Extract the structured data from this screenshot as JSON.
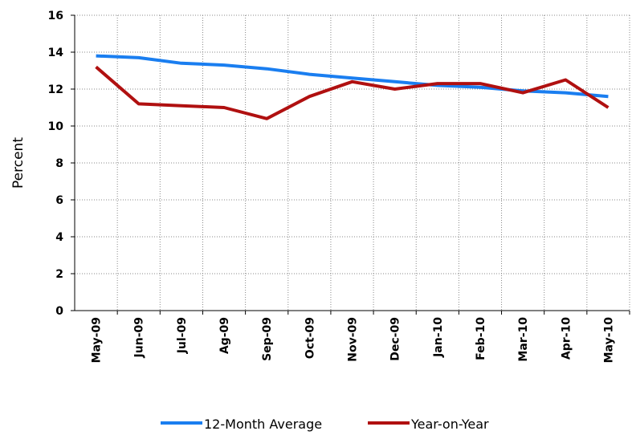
{
  "chart_data": {
    "type": "line",
    "y_label": "Percent",
    "categories": [
      "May-09",
      "Jun-09",
      "Jul-09",
      "Ag-09",
      "Sep-09",
      "Oct-09",
      "Nov-09",
      "Dec-09",
      "Jan-10",
      "Feb-10",
      "Mar-10",
      "Apr-10",
      "May-10"
    ],
    "series": [
      {
        "name": "12-Month Average",
        "color": "#1a7ef0",
        "values": [
          13.8,
          13.7,
          13.4,
          13.3,
          13.1,
          12.8,
          12.6,
          12.4,
          12.2,
          12.1,
          11.9,
          11.8,
          11.6
        ]
      },
      {
        "name": "Year-on-Year",
        "color": "#b01010",
        "values": [
          13.2,
          11.2,
          11.1,
          11.0,
          10.4,
          11.6,
          12.4,
          12.0,
          12.3,
          12.3,
          11.8,
          12.5,
          11.0
        ]
      }
    ],
    "ylim": [
      0,
      16
    ],
    "yticks": [
      0,
      2,
      4,
      6,
      8,
      10,
      12,
      14,
      16
    ],
    "grid": true,
    "legend": "bottom"
  }
}
